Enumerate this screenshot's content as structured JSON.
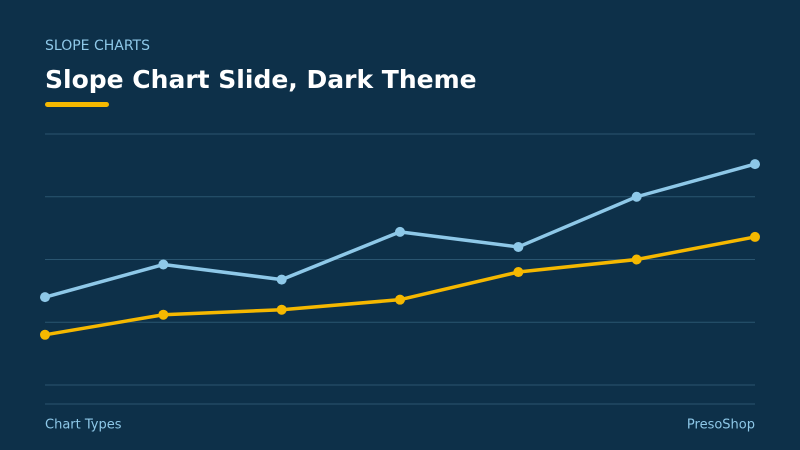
{
  "header": {
    "kicker": "SLOPE CHARTS",
    "title": "Slope Chart Slide, Dark Theme"
  },
  "chart_data": {
    "type": "line",
    "categories": [
      null,
      null,
      null,
      null,
      null,
      null,
      null
    ],
    "series": [
      {
        "color": "#8ec8e8",
        "values": [
          35,
          48,
          42,
          61,
          55,
          75,
          88
        ]
      },
      {
        "color": "#f5b800",
        "values": [
          20,
          28,
          30,
          34,
          45,
          50,
          59
        ]
      }
    ],
    "ylim": [
      0,
      100
    ],
    "yticks": [
      0,
      25,
      50,
      75,
      100
    ],
    "grid": true
  },
  "footer": {
    "left": "Chart Types",
    "right": "PresoShop"
  }
}
